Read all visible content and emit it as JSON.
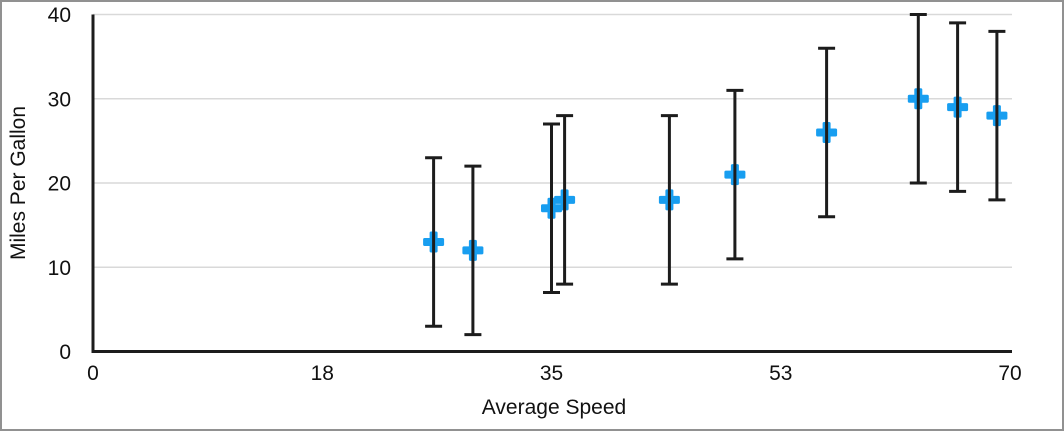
{
  "chart_data": {
    "type": "scatter",
    "title": "",
    "xlabel": "Average Speed",
    "ylabel": "Miles Per Gallon",
    "xlim": [
      0,
      70
    ],
    "ylim": [
      0,
      40
    ],
    "x_tick_values": [
      0,
      17.5,
      35,
      52.5,
      70
    ],
    "x_tick_labels": [
      "0",
      "18",
      "35",
      "53",
      "70"
    ],
    "y_tick_values": [
      0,
      10,
      20,
      30,
      40
    ],
    "y_tick_labels": [
      "0",
      "10",
      "20",
      "30",
      "40"
    ],
    "grid": "horizontal-only",
    "legend": "none",
    "series": [
      {
        "name": "Miles Per Gallon",
        "marker": "plus",
        "marker_color": "#189EF0",
        "error_bar": {
          "type": "fixed",
          "value": 10,
          "direction": "both",
          "color": "#1C1C1C"
        },
        "points": [
          {
            "x": 26,
            "y": 13,
            "y_err": 10
          },
          {
            "x": 29,
            "y": 12,
            "y_err": 10
          },
          {
            "x": 35,
            "y": 17,
            "y_err": 10
          },
          {
            "x": 36,
            "y": 18,
            "y_err": 10
          },
          {
            "x": 44,
            "y": 18,
            "y_err": 10
          },
          {
            "x": 49,
            "y": 21,
            "y_err": 10
          },
          {
            "x": 56,
            "y": 26,
            "y_err": 10
          },
          {
            "x": 63,
            "y": 30,
            "y_err": 10
          },
          {
            "x": 66,
            "y": 29,
            "y_err": 10
          },
          {
            "x": 69,
            "y": 28,
            "y_err": 10
          }
        ]
      }
    ],
    "colors": {
      "axis": "#1C1C1C",
      "gridline": "#D9D9D9",
      "text": "#111111",
      "marker": "#189EF0",
      "background": "#FFFFFF",
      "frame_border": "#919191"
    }
  }
}
